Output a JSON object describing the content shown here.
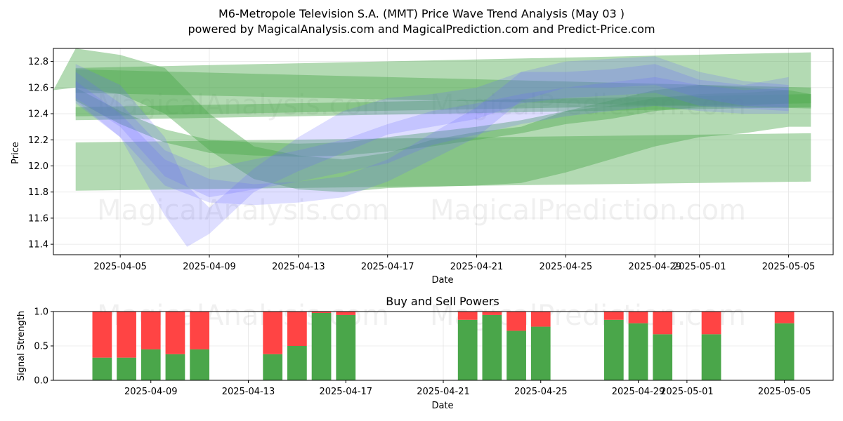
{
  "figure": {
    "title_line1": "M6-Metropole Television S.A. (MMT) Price Wave Trend Analysis (May 03 )",
    "title_line2": "powered by MagicalAnalysis.com and MagicalPrediction.com and Predict-Price.com",
    "watermarks": [
      "MagicalAnalysis.com",
      "MagicalPrediction.com"
    ]
  },
  "colors": {
    "blue_band": "#6a6aff",
    "green_band": "#4aa64a",
    "buy": "#4aa64a",
    "sell": "#ff4444",
    "grid": "#e6e6e6"
  },
  "chart_data": [
    {
      "type": "area",
      "xlabel": "Date",
      "ylabel": "Price",
      "x_range": [
        "2025-04-02",
        "2025-05-07"
      ],
      "ylim": [
        11.32,
        12.9
      ],
      "grid": true,
      "x_ticks": [
        "2025-04-05",
        "2025-04-09",
        "2025-04-13",
        "2025-04-17",
        "2025-04-21",
        "2025-04-25",
        "2025-04-29",
        "2025-05-01",
        "2025-05-05"
      ],
      "y_ticks": [
        "11.4",
        "11.6",
        "11.8",
        "12.0",
        "12.2",
        "12.4",
        "12.6",
        "12.8"
      ],
      "blue_bands": [
        {
          "x": [
            "2025-04-03",
            "2025-04-05",
            "2025-04-07",
            "2025-04-08",
            "2025-04-09",
            "2025-04-11",
            "2025-04-13",
            "2025-04-15",
            "2025-04-17",
            "2025-04-19",
            "2025-04-21",
            "2025-04-23",
            "2025-04-25",
            "2025-04-27",
            "2025-04-29",
            "2025-05-01",
            "2025-05-03",
            "2025-05-05"
          ],
          "upper": [
            12.78,
            12.62,
            12.22,
            11.85,
            11.68,
            11.98,
            12.22,
            12.42,
            12.52,
            12.55,
            12.6,
            12.72,
            12.72,
            12.74,
            12.78,
            12.66,
            12.62,
            12.68
          ],
          "lower": [
            12.48,
            12.22,
            11.62,
            11.38,
            11.48,
            11.8,
            11.96,
            12.1,
            12.24,
            12.3,
            12.36,
            12.48,
            12.52,
            12.54,
            12.56,
            12.46,
            12.44,
            12.42
          ]
        },
        {
          "x": [
            "2025-04-03",
            "2025-04-05",
            "2025-04-07",
            "2025-04-09",
            "2025-04-11",
            "2025-04-13",
            "2025-04-15",
            "2025-04-17",
            "2025-04-19",
            "2025-04-21",
            "2025-04-23",
            "2025-04-25",
            "2025-04-27",
            "2025-04-29",
            "2025-05-01",
            "2025-05-03",
            "2025-05-05"
          ],
          "upper": [
            12.72,
            12.48,
            12.12,
            11.98,
            12.05,
            12.12,
            12.2,
            12.32,
            12.42,
            12.48,
            12.55,
            12.6,
            12.64,
            12.68,
            12.62,
            12.58,
            12.6
          ],
          "lower": [
            12.52,
            12.3,
            11.92,
            11.76,
            11.82,
            11.88,
            11.95,
            12.02,
            12.16,
            12.24,
            12.32,
            12.38,
            12.42,
            12.46,
            12.42,
            12.4,
            12.4
          ]
        },
        {
          "x": [
            "2025-04-03",
            "2025-04-05",
            "2025-04-07",
            "2025-04-09",
            "2025-04-11",
            "2025-04-13",
            "2025-04-15",
            "2025-04-17",
            "2025-04-19",
            "2025-04-21",
            "2025-04-23",
            "2025-04-25",
            "2025-04-27",
            "2025-04-29",
            "2025-05-01",
            "2025-05-03",
            "2025-05-05"
          ],
          "upper": [
            12.65,
            12.4,
            12.05,
            11.9,
            11.86,
            11.88,
            11.92,
            12.05,
            12.25,
            12.45,
            12.72,
            12.8,
            12.82,
            12.84,
            12.72,
            12.65,
            12.62
          ],
          "lower": [
            12.5,
            12.22,
            11.85,
            11.72,
            11.7,
            11.72,
            11.76,
            11.88,
            12.05,
            12.22,
            12.5,
            12.6,
            12.6,
            12.62,
            12.52,
            12.46,
            12.45
          ]
        }
      ],
      "green_bands": [
        {
          "x_start": "2025-04-03",
          "x_end": "2025-05-06",
          "start_upper": 12.18,
          "start_lower": 11.81,
          "end_upper": 12.25,
          "end_lower": 11.88
        },
        {
          "x_start": "2025-04-03",
          "x_end": "2025-05-06",
          "start_upper": 12.75,
          "start_lower": 12.38,
          "end_upper": 12.87,
          "end_lower": 12.48
        },
        {
          "x_start": "2025-04-03",
          "x_end": "2025-05-06",
          "start_upper": 12.74,
          "start_lower": 12.56,
          "end_upper": 12.6,
          "end_lower": 12.44
        },
        {
          "x_start": "2025-04-03",
          "x_end": "2025-05-06",
          "start_upper": 12.45,
          "start_lower": 12.35,
          "end_upper": 12.55,
          "end_lower": 12.45
        },
        {
          "x": [
            "2025-04-02",
            "2025-04-03",
            "2025-04-05",
            "2025-04-07",
            "2025-04-09",
            "2025-04-11",
            "2025-04-13",
            "2025-04-15",
            "2025-04-17",
            "2025-04-19",
            "2025-04-21",
            "2025-04-23",
            "2025-04-25",
            "2025-04-27",
            "2025-04-29",
            "2025-05-01",
            "2025-05-03",
            "2025-05-05",
            "2025-05-06"
          ],
          "upper": [
            12.58,
            12.9,
            12.85,
            12.75,
            12.4,
            12.15,
            12.08,
            12.05,
            12.1,
            12.2,
            12.26,
            12.3,
            12.42,
            12.5,
            12.58,
            12.62,
            12.6,
            12.58,
            12.55
          ],
          "lower": [
            12.58,
            12.6,
            12.55,
            12.4,
            12.12,
            11.9,
            11.82,
            11.8,
            11.83,
            11.84,
            11.85,
            11.87,
            11.95,
            12.05,
            12.15,
            12.22,
            12.25,
            12.3,
            12.3
          ]
        },
        {
          "x": [
            "2025-04-03",
            "2025-04-05",
            "2025-04-07",
            "2025-04-09",
            "2025-04-11",
            "2025-04-13",
            "2025-04-15",
            "2025-04-17",
            "2025-04-19",
            "2025-04-21",
            "2025-04-23",
            "2025-04-25",
            "2025-04-27",
            "2025-04-29",
            "2025-05-01",
            "2025-05-03",
            "2025-05-05"
          ],
          "upper": [
            12.6,
            12.42,
            12.28,
            12.2,
            12.18,
            12.17,
            12.18,
            12.22,
            12.26,
            12.3,
            12.35,
            12.42,
            12.46,
            12.52,
            12.55,
            12.56,
            12.58
          ],
          "lower": [
            12.5,
            12.32,
            12.18,
            12.1,
            12.08,
            12.07,
            12.08,
            12.11,
            12.15,
            12.2,
            12.25,
            12.32,
            12.36,
            12.42,
            12.45,
            12.46,
            12.48
          ]
        }
      ]
    },
    {
      "type": "bar",
      "title": "Buy and Sell Powers",
      "xlabel": "Date",
      "ylabel": "Signal Strength",
      "ylim": [
        0,
        1
      ],
      "y_ticks": [
        "0.0",
        "0.5",
        "1.0"
      ],
      "x_ticks": [
        "2025-04-09",
        "2025-04-13",
        "2025-04-17",
        "2025-04-21",
        "2025-04-25",
        "2025-04-29",
        "2025-05-01",
        "2025-05-05"
      ],
      "x_range": [
        "2025-04-05",
        "2025-05-07"
      ],
      "dates": [
        "2025-04-07",
        "2025-04-08",
        "2025-04-09",
        "2025-04-10",
        "2025-04-11",
        "2025-04-14",
        "2025-04-15",
        "2025-04-16",
        "2025-04-17",
        "2025-04-22",
        "2025-04-23",
        "2025-04-24",
        "2025-04-25",
        "2025-04-28",
        "2025-04-29",
        "2025-04-30",
        "2025-05-02",
        "2025-05-05"
      ],
      "series": [
        {
          "name": "Buy",
          "values": [
            0.33,
            0.33,
            0.45,
            0.38,
            0.45,
            0.38,
            0.5,
            0.98,
            0.95,
            0.88,
            0.95,
            0.72,
            0.78,
            0.88,
            0.83,
            0.67,
            0.67,
            0.83
          ]
        },
        {
          "name": "Sell",
          "values": [
            0.67,
            0.67,
            0.55,
            0.62,
            0.55,
            0.62,
            0.5,
            0.02,
            0.05,
            0.12,
            0.05,
            0.28,
            0.22,
            0.12,
            0.17,
            0.33,
            0.33,
            0.17
          ]
        }
      ]
    }
  ]
}
